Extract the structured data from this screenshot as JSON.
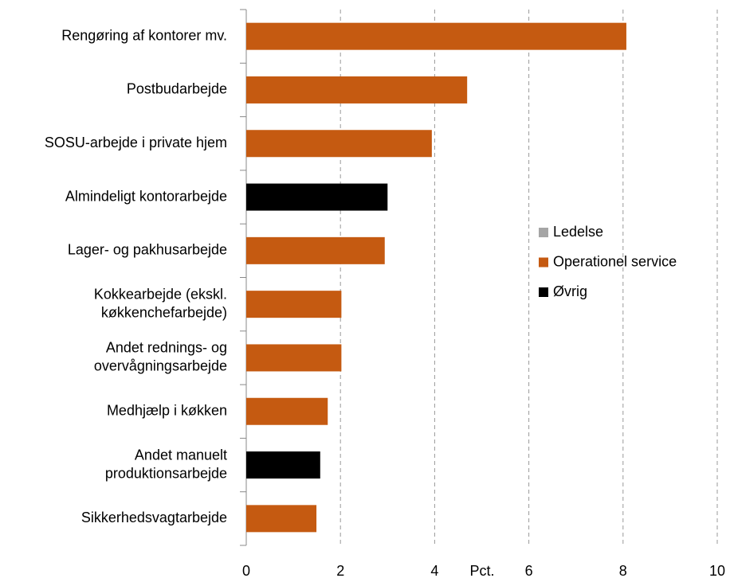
{
  "chart_data": {
    "type": "barh",
    "categories": [
      "Rengøring af kontorer mv.",
      "Postbudarbejde",
      "SOSU-arbejde i private hjem",
      "Almindeligt kontorarbejde",
      "Lager- og pakhusarbejde",
      [
        "Kokkearbejde (ekskl.",
        "køkkenchefarbejde)"
      ],
      [
        "Andet rednings- og",
        "overvågningsarbejde"
      ],
      "Medhjælp i køkken",
      [
        "Andet manuelt",
        "produktionsarbejde"
      ],
      "Sikkerhedsvagtarbejde"
    ],
    "series": [
      {
        "name": "Ledelse",
        "color": "#a5a5a5",
        "values": [
          null,
          null,
          null,
          null,
          null,
          null,
          null,
          null,
          null,
          null
        ]
      },
      {
        "name": "Operationel service",
        "color": "#c55a11",
        "values": [
          8.07,
          4.69,
          3.94,
          null,
          2.94,
          2.02,
          2.02,
          1.73,
          null,
          1.49
        ]
      },
      {
        "name": "Øvrig",
        "color": "#000000",
        "values": [
          null,
          null,
          null,
          3.0,
          null,
          null,
          null,
          null,
          1.57,
          null
        ]
      }
    ],
    "xlabel": "Pct.",
    "xlim": [
      0,
      10
    ],
    "xticks": [
      0,
      2,
      4,
      6,
      8,
      10
    ],
    "grid": true,
    "legend": "right"
  }
}
